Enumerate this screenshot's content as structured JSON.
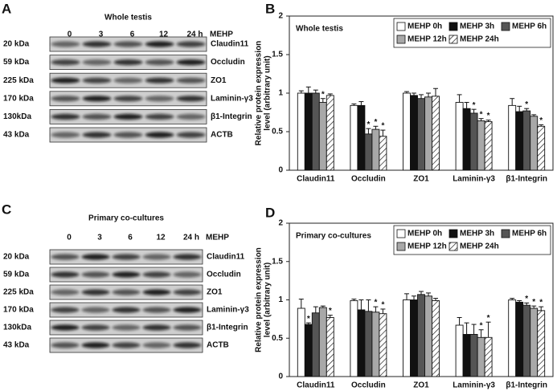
{
  "panel_labels": [
    "A",
    "B",
    "C",
    "D"
  ],
  "blots": [
    {
      "title": "Whole testis",
      "lanes": [
        "0",
        "3",
        "6",
        "12",
        "24 h"
      ],
      "treatment": "MEHP",
      "rows": [
        {
          "mw": "20 kDa",
          "protein": "Claudin11"
        },
        {
          "mw": "59 kDa",
          "protein": "Occludin"
        },
        {
          "mw": "225 kDa",
          "protein": "ZO1"
        },
        {
          "mw": "170 kDa",
          "protein": "Laminin-γ3"
        },
        {
          "mw": "130kDa",
          "protein": "β1-Integrin"
        },
        {
          "mw": "43 kDa",
          "protein": "ACTB"
        }
      ]
    },
    {
      "title": "Primary co-cultures",
      "lanes": [
        "0",
        "3",
        "6",
        "12",
        "24 h"
      ],
      "treatment": "MEHP",
      "rows": [
        {
          "mw": "20 kDa",
          "protein": "Claudin11"
        },
        {
          "mw": "59 kDa",
          "protein": "Occludin"
        },
        {
          "mw": "225 kDa",
          "protein": "ZO1"
        },
        {
          "mw": "170 kDa",
          "protein": "Laminin-γ3"
        },
        {
          "mw": "130kDa",
          "protein": "β1-Integrin"
        },
        {
          "mw": "43 kDa",
          "protein": "ACTB"
        }
      ]
    }
  ],
  "chart_data": [
    {
      "type": "bar",
      "title": "Whole testis",
      "ylabel": [
        "Relative protein expression",
        "level (arbitrary unit)"
      ],
      "categories": [
        "Claudin11",
        "Occludin",
        "ZO1",
        "Laminin-γ3",
        "β1-Integrin"
      ],
      "ylim": [
        0,
        2
      ],
      "yticks": [
        0,
        0.5,
        1,
        1.5,
        2
      ],
      "legend": "upper right",
      "series": [
        {
          "name": "MEHP 0h",
          "color": "#ffffff",
          "values": [
            1.0,
            0.84,
            1.0,
            0.88,
            0.84
          ],
          "errors": [
            0.03,
            0.02,
            0.02,
            0.1,
            0.09
          ],
          "significance": [
            null,
            null,
            null,
            null,
            null
          ]
        },
        {
          "name": "MEHP 3h",
          "color": "#111111",
          "values": [
            1.0,
            0.84,
            0.97,
            0.8,
            0.76
          ],
          "errors": [
            0.08,
            0.05,
            0.03,
            0.08,
            0.07
          ],
          "significance": [
            null,
            null,
            null,
            null,
            null
          ]
        },
        {
          "name": "MEHP 6h",
          "color": "#555555",
          "values": [
            1.0,
            0.47,
            0.93,
            0.74,
            0.77
          ],
          "errors": [
            0.04,
            0.07,
            0.05,
            0.05,
            0.03
          ],
          "significance": [
            null,
            "*",
            null,
            "*",
            "*"
          ]
        },
        {
          "name": "MEHP 12h",
          "color": "#a8a8a8",
          "values": [
            0.88,
            0.53,
            0.95,
            0.64,
            0.7
          ],
          "errors": [
            0.05,
            0.04,
            0.05,
            0.03,
            0.02
          ],
          "significance": [
            "*",
            "*",
            null,
            "*",
            null
          ]
        },
        {
          "name": "MEHP 24h",
          "color": "#ffffff",
          "hatch": true,
          "values": [
            0.97,
            0.44,
            0.96,
            0.63,
            0.57
          ],
          "errors": [
            0.02,
            0.08,
            0.1,
            0.02,
            0.02
          ],
          "significance": [
            null,
            "*",
            null,
            "*",
            "*"
          ]
        }
      ]
    },
    {
      "type": "bar",
      "title": "Primary co-cultures",
      "ylabel": [
        "Relative protein expression",
        "level (arbitrary unit)"
      ],
      "categories": [
        "Claudin11",
        "Occludin",
        "ZO1",
        "Laminin-γ3",
        "β1-Integrin"
      ],
      "ylim": [
        0,
        2
      ],
      "yticks": [
        0,
        0.5,
        1,
        1.5,
        2
      ],
      "legend": "upper right",
      "series": [
        {
          "name": "MEHP 0h",
          "color": "#ffffff",
          "values": [
            0.89,
            0.99,
            1.0,
            0.67,
            1.0
          ],
          "errors": [
            0.12,
            0.02,
            0.08,
            0.1,
            0.02
          ],
          "significance": [
            null,
            null,
            null,
            null,
            null
          ]
        },
        {
          "name": "MEHP 3h",
          "color": "#111111",
          "values": [
            0.68,
            0.87,
            1.0,
            0.55,
            0.97
          ],
          "errors": [
            0.02,
            0.13,
            0.05,
            0.15,
            0.02
          ],
          "significance": [
            "*",
            null,
            null,
            null,
            null
          ]
        },
        {
          "name": "MEHP 6h",
          "color": "#555555",
          "values": [
            0.83,
            0.85,
            1.07,
            0.55,
            0.93
          ],
          "errors": [
            0.08,
            0.15,
            0.04,
            0.13,
            0.03
          ],
          "significance": [
            null,
            null,
            null,
            null,
            "*"
          ]
        },
        {
          "name": "MEHP 12h",
          "color": "#a8a8a8",
          "values": [
            0.9,
            0.84,
            1.05,
            0.51,
            0.89
          ],
          "errors": [
            0.02,
            0.07,
            0.04,
            0.1,
            0.03
          ],
          "significance": [
            null,
            "*",
            null,
            "*",
            "*"
          ]
        },
        {
          "name": "MEHP 24h",
          "color": "#ffffff",
          "hatch": true,
          "values": [
            0.77,
            0.82,
            0.99,
            0.51,
            0.86
          ],
          "errors": [
            0.03,
            0.06,
            0.03,
            0.2,
            0.05
          ],
          "significance": [
            "*",
            "*",
            null,
            "*",
            "*"
          ]
        }
      ]
    }
  ]
}
